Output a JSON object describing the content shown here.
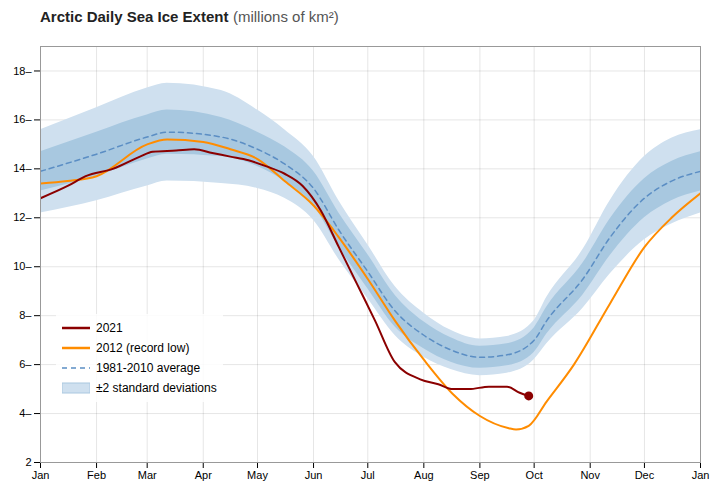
{
  "chart_data": {
    "type": "line",
    "title": "Arctic Daily Sea Ice Extent",
    "subtitle": "(millions of km²)",
    "xlim": [
      0,
      365
    ],
    "xticks": [
      {
        "value": 0,
        "label": "Jan"
      },
      {
        "value": 31,
        "label": "Feb"
      },
      {
        "value": 59,
        "label": "Mar"
      },
      {
        "value": 90,
        "label": "Apr"
      },
      {
        "value": 120,
        "label": "May"
      },
      {
        "value": 151,
        "label": "Jun"
      },
      {
        "value": 181,
        "label": "Jul"
      },
      {
        "value": 212,
        "label": "Aug"
      },
      {
        "value": 243,
        "label": "Sep"
      },
      {
        "value": 273,
        "label": "Oct"
      },
      {
        "value": 304,
        "label": "Nov"
      },
      {
        "value": 334,
        "label": "Dec"
      },
      {
        "value": 365,
        "label": "Jan"
      }
    ],
    "ylim": [
      2,
      19
    ],
    "yticks": [
      2,
      {
        "value": 4,
        "label": "4–"
      },
      {
        "value": 6,
        "label": "6–"
      },
      {
        "value": 8,
        "label": "8–"
      },
      {
        "value": 10,
        "label": "10–"
      },
      {
        "value": 12,
        "label": "12–"
      },
      {
        "value": 14,
        "label": "14–"
      },
      {
        "value": 16,
        "label": "16–"
      },
      {
        "value": 18,
        "label": "18–"
      }
    ],
    "grid": true,
    "legend": "lower left",
    "series": [
      {
        "name": "±2 standard deviations",
        "type": "area",
        "color": "#cfe0ef",
        "x": [
          0,
          31,
          59,
          70,
          100,
          120,
          135,
          151,
          165,
          181,
          196,
          212,
          227,
          243,
          258,
          273,
          280,
          300,
          315,
          334,
          349,
          365
        ],
        "lower": [
          12.2,
          12.7,
          13.3,
          13.5,
          13.4,
          13.2,
          12.8,
          11.9,
          10.3,
          8.7,
          7.2,
          6.3,
          5.8,
          5.55,
          5.65,
          6.2,
          6.85,
          8.3,
          9.7,
          11.1,
          11.75,
          12.2
        ],
        "upper": [
          15.6,
          16.5,
          17.3,
          17.5,
          17.2,
          16.4,
          15.6,
          14.5,
          12.7,
          10.9,
          9.2,
          8.1,
          7.4,
          7.05,
          7.15,
          7.8,
          8.75,
          10.7,
          12.7,
          14.5,
          15.25,
          15.6
        ]
      },
      {
        "type": "area",
        "color": "#a8c8e0",
        "x": [
          0,
          31,
          59,
          70,
          100,
          120,
          135,
          151,
          165,
          181,
          196,
          212,
          227,
          243,
          258,
          273,
          280,
          300,
          315,
          334,
          349,
          365
        ],
        "lower": [
          13.1,
          13.7,
          14.4,
          14.6,
          14.5,
          14.1,
          13.5,
          12.5,
          10.8,
          9.1,
          7.55,
          6.65,
          6.1,
          5.85,
          5.95,
          6.5,
          7.25,
          8.85,
          10.45,
          12.0,
          12.7,
          13.1
        ],
        "upper": [
          14.7,
          15.5,
          16.2,
          16.4,
          16.1,
          15.5,
          14.9,
          13.9,
          12.2,
          10.5,
          8.85,
          7.75,
          7.1,
          6.75,
          6.85,
          7.5,
          8.35,
          10.15,
          11.95,
          13.6,
          14.3,
          14.7
        ]
      },
      {
        "name": "1981-2010 average",
        "type": "line",
        "color": "#5b8ec4",
        "line_style": "dashed",
        "x": [
          0,
          31,
          59,
          70,
          100,
          120,
          135,
          151,
          165,
          181,
          196,
          212,
          227,
          243,
          258,
          273,
          280,
          300,
          315,
          334,
          349,
          365
        ],
        "values": [
          13.9,
          14.6,
          15.3,
          15.5,
          15.3,
          14.8,
          14.2,
          13.2,
          11.5,
          9.8,
          8.2,
          7.2,
          6.6,
          6.3,
          6.4,
          7.0,
          7.8,
          9.5,
          11.2,
          12.8,
          13.5,
          13.9
        ]
      },
      {
        "name": "2012 (record low)",
        "type": "line",
        "color": "#FF8C00",
        "line_style": "solid",
        "x": [
          0,
          15,
          31,
          59,
          70,
          90,
          105,
          120,
          135,
          151,
          165,
          181,
          196,
          212,
          228,
          243,
          259,
          263,
          270,
          280,
          295,
          315,
          334,
          349,
          365
        ],
        "values": [
          13.4,
          13.5,
          13.7,
          15.0,
          15.2,
          15.1,
          14.8,
          14.4,
          13.5,
          12.5,
          11.2,
          9.5,
          7.8,
          6.2,
          4.8,
          3.9,
          3.4,
          3.35,
          3.5,
          4.5,
          6.0,
          8.5,
          10.8,
          12.0,
          13.0
        ]
      },
      {
        "name": "2021",
        "type": "line",
        "color": "#8B0000",
        "line_style": "solid",
        "x": [
          0,
          15,
          25,
          40,
          55,
          62,
          75,
          85,
          95,
          105,
          115,
          125,
          135,
          145,
          155,
          165,
          175,
          185,
          196,
          210,
          220,
          228,
          237,
          248,
          258,
          265,
          270
        ],
        "values": [
          12.8,
          13.3,
          13.7,
          14.0,
          14.5,
          14.7,
          14.75,
          14.8,
          14.65,
          14.5,
          14.35,
          14.1,
          13.8,
          13.3,
          12.3,
          10.8,
          9.3,
          7.8,
          6.1,
          5.4,
          5.2,
          5.0,
          5.0,
          5.1,
          5.1,
          4.85,
          4.72
        ]
      },
      {
        "type": "scatter",
        "color": "#8B0000",
        "marker": "circle",
        "x": [
          270
        ],
        "values": [
          4.72
        ]
      }
    ]
  }
}
